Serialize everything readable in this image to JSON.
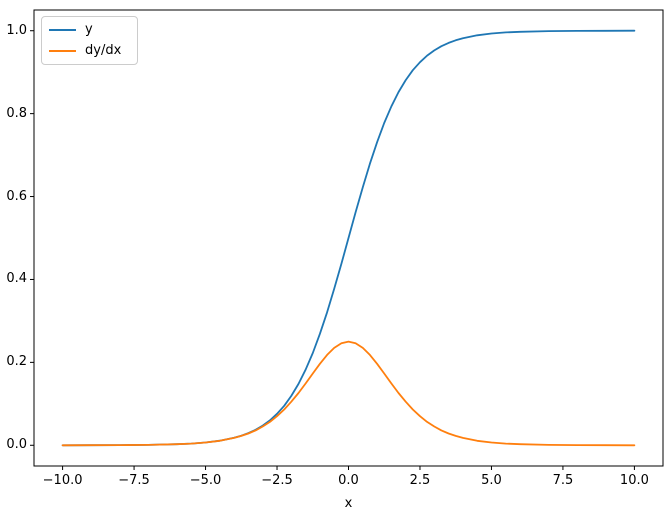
{
  "figure": {
    "background": "#ffffff",
    "axes_edge_color": "#000000",
    "xlabel": "x",
    "xlim": [
      -11,
      11
    ],
    "ylim": [
      -0.05,
      1.05
    ],
    "xticks": {
      "values": [
        -10,
        -7.5,
        -5,
        -2.5,
        0,
        2.5,
        5,
        7.5,
        10
      ],
      "labels": [
        "−10.0",
        "−7.5",
        "−5.0",
        "−2.5",
        "0.0",
        "2.5",
        "5.0",
        "7.5",
        "10.0"
      ]
    },
    "yticks": {
      "values": [
        0,
        0.2,
        0.4,
        0.6,
        0.8,
        1.0
      ],
      "labels": [
        "0.0",
        "0.2",
        "0.4",
        "0.6",
        "0.8",
        "1.0"
      ]
    },
    "legend": {
      "position": "upper left",
      "entries": [
        {
          "label": "y",
          "color": "#1f77b4"
        },
        {
          "label": "dy/dx",
          "color": "#ff7f0e"
        }
      ]
    }
  },
  "chart_data": {
    "type": "line",
    "title": "",
    "xlabel": "x",
    "ylabel": "",
    "xlim": [
      -11,
      11
    ],
    "ylim": [
      -0.05,
      1.05
    ],
    "grid": false,
    "legend_position": "upper left",
    "x": [
      -10,
      -9,
      -8,
      -7,
      -6,
      -5.5,
      -5,
      -4.5,
      -4,
      -3.75,
      -3.5,
      -3.25,
      -3,
      -2.75,
      -2.5,
      -2.25,
      -2,
      -1.75,
      -1.5,
      -1.25,
      -1,
      -0.75,
      -0.5,
      -0.25,
      0,
      0.25,
      0.5,
      0.75,
      1,
      1.25,
      1.5,
      1.75,
      2,
      2.25,
      2.5,
      2.75,
      3,
      3.25,
      3.5,
      3.75,
      4,
      4.5,
      5,
      5.5,
      6,
      7,
      8,
      9,
      10
    ],
    "series": [
      {
        "name": "y",
        "color": "#1f77b4",
        "values": [
          0.0,
          0.0001,
          0.0003,
          0.0009,
          0.0025,
          0.0041,
          0.0067,
          0.011,
          0.018,
          0.023,
          0.0293,
          0.0373,
          0.0474,
          0.0601,
          0.0759,
          0.0953,
          0.1192,
          0.148,
          0.1824,
          0.2227,
          0.2689,
          0.3208,
          0.3775,
          0.4378,
          0.5,
          0.5622,
          0.6225,
          0.6792,
          0.7311,
          0.7773,
          0.8176,
          0.852,
          0.8808,
          0.9047,
          0.9241,
          0.9399,
          0.9526,
          0.9627,
          0.9707,
          0.977,
          0.982,
          0.989,
          0.9933,
          0.9959,
          0.9975,
          0.9991,
          0.9997,
          0.9999,
          1.0
        ]
      },
      {
        "name": "dy/dx",
        "color": "#ff7f0e",
        "values": [
          0.0,
          0.0001,
          0.0003,
          0.0009,
          0.0025,
          0.0041,
          0.0066,
          0.0109,
          0.0177,
          0.0225,
          0.0284,
          0.0359,
          0.0452,
          0.0565,
          0.0701,
          0.0862,
          0.105,
          0.1261,
          0.1491,
          0.1731,
          0.1966,
          0.2179,
          0.235,
          0.2461,
          0.25,
          0.2461,
          0.235,
          0.2179,
          0.1966,
          0.1731,
          0.1491,
          0.1261,
          0.105,
          0.0862,
          0.0701,
          0.0565,
          0.0452,
          0.0359,
          0.0284,
          0.0225,
          0.0177,
          0.0109,
          0.0066,
          0.0041,
          0.0025,
          0.0009,
          0.0003,
          0.0001,
          0.0
        ]
      }
    ]
  }
}
